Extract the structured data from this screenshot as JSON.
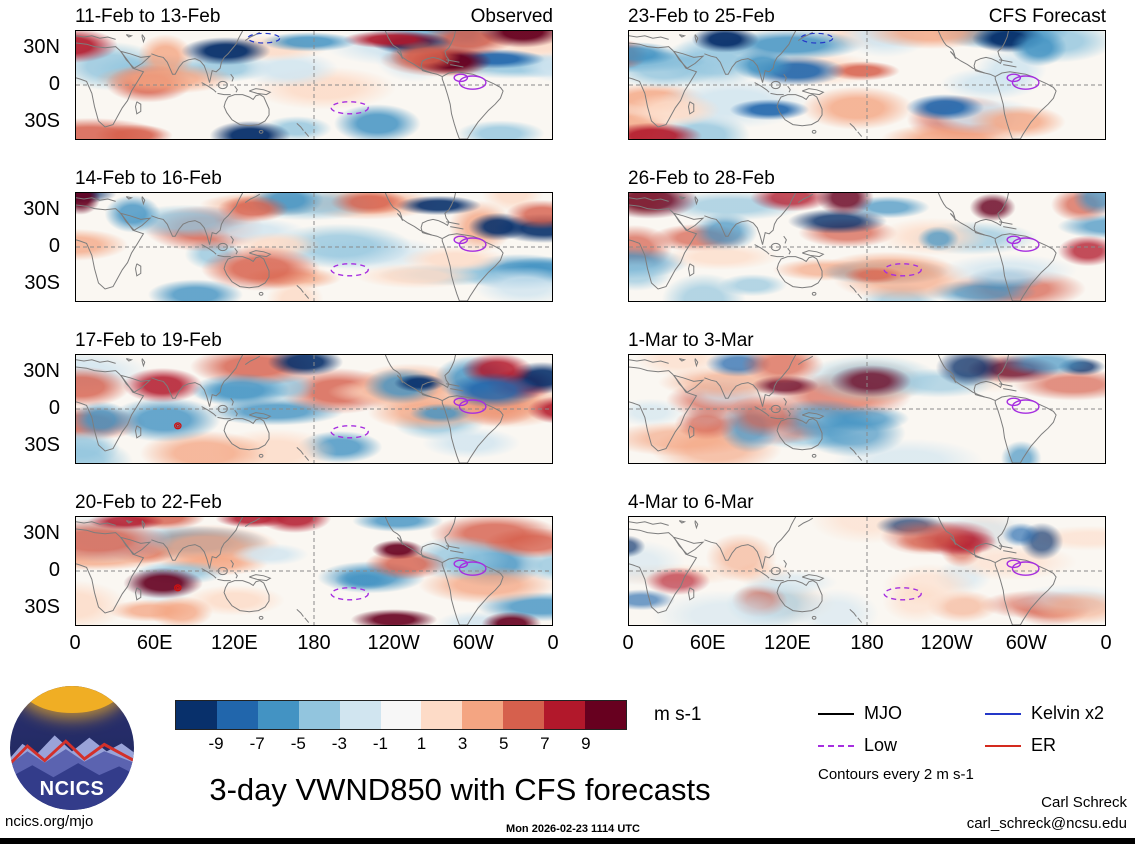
{
  "figure": {
    "title": "3-day VWND850 with CFS forecasts",
    "units_label": "m s-1",
    "contours_note": "Contours every 2 m s-1",
    "footer_left": "ncics.org/mjo",
    "footer_center": "Mon 2026-02-23 1114 UTC",
    "credit_name": "Carl Schreck",
    "credit_email": "carl_schreck@ncsu.edu",
    "logo_text": "NCICS"
  },
  "panels": [
    {
      "title": "11-Feb to 13-Feb",
      "corner": "Observed"
    },
    {
      "title": "23-Feb to 25-Feb",
      "corner": "CFS Forecast"
    },
    {
      "title": "14-Feb to 16-Feb",
      "corner": ""
    },
    {
      "title": "26-Feb to 28-Feb",
      "corner": ""
    },
    {
      "title": "17-Feb to 19-Feb",
      "corner": ""
    },
    {
      "title": "1-Mar to 3-Mar",
      "corner": ""
    },
    {
      "title": "20-Feb to 22-Feb",
      "corner": ""
    },
    {
      "title": "4-Mar to 6-Mar",
      "corner": ""
    }
  ],
  "axes": {
    "y_ticks": [
      "30N",
      "0",
      "30S"
    ],
    "x_ticks": [
      "0",
      "60E",
      "120E",
      "180",
      "120W",
      "60W",
      "0"
    ]
  },
  "legend": [
    {
      "label": "MJO",
      "color": "#000000",
      "dash": false
    },
    {
      "label": "Kelvin x2",
      "color": "#2438c8",
      "dash": false
    },
    {
      "label": "Low",
      "color": "#a62ee0",
      "dash": true
    },
    {
      "label": "ER",
      "color": "#d42a1e",
      "dash": false
    }
  ],
  "colorbar": {
    "tick_labels": [
      "-9",
      "-7",
      "-5",
      "-3",
      "-1",
      "1",
      "3",
      "5",
      "7",
      "9"
    ],
    "colors": [
      "#08306B",
      "#2166AC",
      "#4393C3",
      "#92C5DE",
      "#D1E5F0",
      "#F7F7F7",
      "#FDDBC7",
      "#F4A582",
      "#D6604D",
      "#B2182B",
      "#67001F"
    ]
  },
  "chart_data": {
    "type": "heatmap",
    "title": "3-day VWND850 with CFS forecasts",
    "units": "m s-1",
    "contour_interval": "2 m s-1",
    "panels": [
      {
        "period": "11-Feb to 13-Feb",
        "source_label": "Observed"
      },
      {
        "period": "23-Feb to 25-Feb",
        "source_label": "CFS Forecast"
      },
      {
        "period": "14-Feb to 16-Feb"
      },
      {
        "period": "26-Feb to 28-Feb"
      },
      {
        "period": "17-Feb to 19-Feb"
      },
      {
        "period": "1-Mar to 3-Mar"
      },
      {
        "period": "20-Feb to 22-Feb"
      },
      {
        "period": "4-Mar to 6-Mar"
      }
    ],
    "x_ticks": [
      "0",
      "60E",
      "120E",
      "180",
      "120W",
      "60W",
      "0"
    ],
    "y_ticks": [
      "30N",
      "0",
      "30S"
    ],
    "colorbar_levels": [
      -9,
      -7,
      -5,
      -3,
      -1,
      1,
      3,
      5,
      7,
      9
    ],
    "legend_entries": [
      "MJO",
      "Kelvin x2",
      "Low",
      "ER"
    ],
    "layout": {
      "rows": 4,
      "cols": 2,
      "gridlines": "dashed at equator and 180",
      "legend_position": "bottom-right",
      "colorbar_position": "bottom"
    }
  }
}
